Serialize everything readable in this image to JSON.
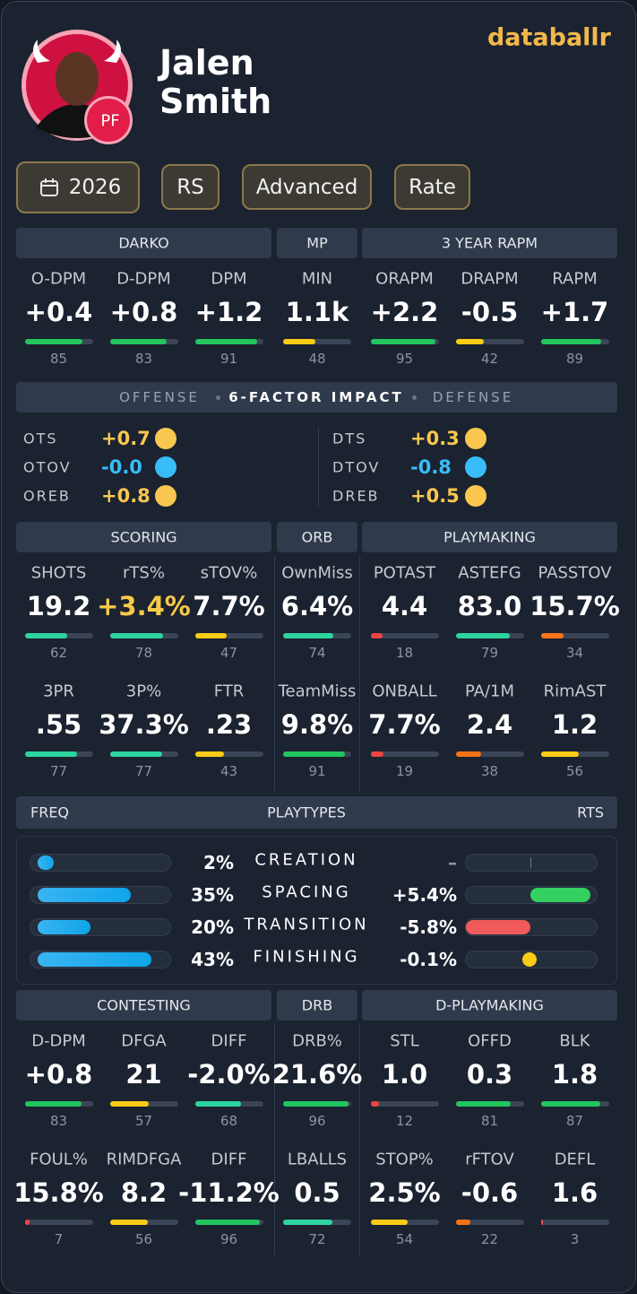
{
  "brand": "databallr",
  "player": {
    "first_name": "Jalen",
    "last_name": "Smith",
    "position": "PF"
  },
  "filters": [
    "2026",
    "RS",
    "Advanced",
    "Rate"
  ],
  "sections": [
    {
      "groups": [
        {
          "title": "DARKO",
          "stats": [
            {
              "label": "O-DPM",
              "value": "+0.4",
              "percentile": 85
            },
            {
              "label": "D-DPM",
              "value": "+0.8",
              "percentile": 83
            },
            {
              "label": "DPM",
              "value": "+1.2",
              "percentile": 91
            }
          ]
        },
        {
          "title": "MP",
          "stats": [
            {
              "label": "MIN",
              "value": "1.1k",
              "percentile": 48
            }
          ]
        },
        {
          "title": "3 YEAR RAPM",
          "stats": [
            {
              "label": "ORAPM",
              "value": "+2.2",
              "percentile": 95
            },
            {
              "label": "DRAPM",
              "value": "-0.5",
              "percentile": 42
            },
            {
              "label": "RAPM",
              "value": "+1.7",
              "percentile": 89
            }
          ]
        }
      ]
    },
    {
      "groups": [
        {
          "title": "SCORING",
          "stats": [
            {
              "label": "SHOTS",
              "value": "19.2",
              "percentile": 62
            },
            {
              "label": "rTS%",
              "value": "+3.4%",
              "percentile": 78,
              "color": "#f7c948"
            },
            {
              "label": "sTOV%",
              "value": "7.7%",
              "percentile": 47
            },
            {
              "label": "3PR",
              "value": ".55",
              "percentile": 77
            },
            {
              "label": "3P%",
              "value": "37.3%",
              "percentile": 77
            },
            {
              "label": "FTR",
              "value": ".23",
              "percentile": 43
            }
          ]
        },
        {
          "title": "ORB",
          "stats": [
            {
              "label": "OwnMiss",
              "value": "6.4%",
              "percentile": 74
            },
            {
              "label": "TeamMiss",
              "value": "9.8%",
              "percentile": 91
            }
          ]
        },
        {
          "title": "PLAYMAKING",
          "stats": [
            {
              "label": "POTAST",
              "value": "4.4",
              "percentile": 18
            },
            {
              "label": "ASTEFG",
              "value": "83.0",
              "percentile": 79
            },
            {
              "label": "PASSTOV",
              "value": "15.7%",
              "percentile": 34
            },
            {
              "label": "ONBALL",
              "value": "7.7%",
              "percentile": 19
            },
            {
              "label": "PA/1M",
              "value": "2.4",
              "percentile": 38
            },
            {
              "label": "RimAST",
              "value": "1.2",
              "percentile": 56
            }
          ]
        }
      ]
    },
    {
      "groups": [
        {
          "title": "CONTESTING",
          "stats": [
            {
              "label": "D-DPM",
              "value": "+0.8",
              "percentile": 83
            },
            {
              "label": "DFGA",
              "value": "21",
              "percentile": 57
            },
            {
              "label": "DIFF",
              "value": "-2.0%",
              "percentile": 68
            },
            {
              "label": "FOUL%",
              "value": "15.8%",
              "percentile": 7
            },
            {
              "label": "RIMDFGA",
              "value": "8.2",
              "percentile": 56
            },
            {
              "label": "DIFF",
              "value": "-11.2%",
              "percentile": 96
            }
          ]
        },
        {
          "title": "DRB",
          "stats": [
            {
              "label": "DRB%",
              "value": "21.6%",
              "percentile": 96
            },
            {
              "label": "LBALLS",
              "value": "0.5",
              "percentile": 72
            }
          ]
        },
        {
          "title": "D-PLAYMAKING",
          "stats": [
            {
              "label": "STL",
              "value": "1.0",
              "percentile": 12
            },
            {
              "label": "OFFD",
              "value": "0.3",
              "percentile": 81
            },
            {
              "label": "BLK",
              "value": "1.8",
              "percentile": 87
            },
            {
              "label": "STOP%",
              "value": "2.5%",
              "percentile": 54
            },
            {
              "label": "rFTOV",
              "value": "-0.6",
              "percentile": 22
            },
            {
              "label": "DEFL",
              "value": "1.6",
              "percentile": 3
            }
          ]
        }
      ]
    }
  ],
  "six_factor": {
    "left": "OFFENSE",
    "title": "6-FACTOR IMPACT",
    "right": "DEFENSE",
    "offense": [
      {
        "label": "OTS",
        "value": "+0.7",
        "color": "#f9c74f"
      },
      {
        "label": "OTOV",
        "value": "-0.0",
        "color": "#38bdf8"
      },
      {
        "label": "OREB",
        "value": "+0.8",
        "color": "#f9c74f"
      }
    ],
    "defense": [
      {
        "label": "DTS",
        "value": "+0.3",
        "color": "#f9c74f"
      },
      {
        "label": "DTOV",
        "value": "-0.8",
        "color": "#38bdf8"
      },
      {
        "label": "DREB",
        "value": "+0.5",
        "color": "#f9c74f"
      }
    ]
  },
  "playtypes": {
    "left": "FREQ",
    "title": "PLAYTYPES",
    "right": "RTS",
    "freq_lim": [
      0,
      50
    ],
    "rts_lim": [
      -6,
      6
    ],
    "rows": [
      {
        "name": "CREATION",
        "freq": 2,
        "freq_label": "2%",
        "rts": null,
        "rts_label": "–"
      },
      {
        "name": "SPACING",
        "freq": 35,
        "freq_label": "35%",
        "rts": 5.4,
        "rts_label": "+5.4%"
      },
      {
        "name": "TRANSITION",
        "freq": 20,
        "freq_label": "20%",
        "rts": -5.8,
        "rts_label": "-5.8%"
      },
      {
        "name": "FINISHING",
        "freq": 43,
        "freq_label": "43%",
        "rts": -0.1,
        "rts_label": "-0.1%"
      }
    ]
  }
}
